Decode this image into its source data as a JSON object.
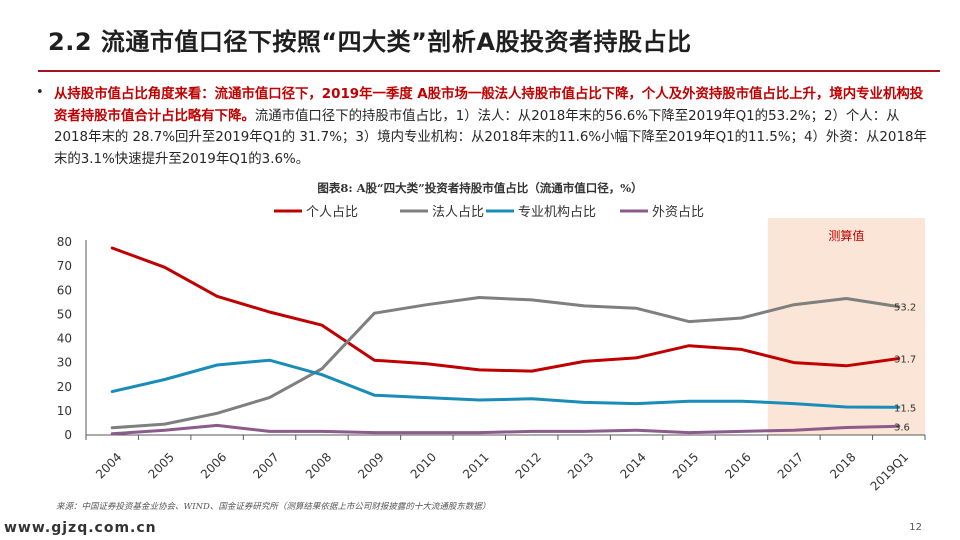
{
  "title": "2.2 流通市值口径下按照“四大类”剖析A股投资者持股占比",
  "paragraph": {
    "bullet": "•",
    "highlight": "从持股市值占比角度来看：流通市值口径下，2019年一季度 A股市场一般法人持股市值占比下降，个人及外资持股市值占比上升，境内专业机构投资者持股市值合计占比略有下降。",
    "body": "流通市值口径下的持股市值占比，1）法人：从2018年末的56.6%下降至2019年Q1的53.2%；2）个人：从 2018年末的 28.7%回升至2019年Q1的 31.7%；3）境内专业机构：从2018年末的11.6%小幅下降至2019年Q1的11.5%；4）外资：从2018年末的3.1%快速提升至2019年Q1的3.6%。"
  },
  "chart_title": "图表8: A股“四大类”投资者持股市值占比（流通市值口径，%）",
  "source": "来源：中国证券投资基金业协会、WIND、国金证券研究所（测算结果依据上市公司财报披露的十大流通股东数据）",
  "watermark": "www.gjzq.com.cn",
  "page_number": "12",
  "colors": {
    "accent": "#a0141d",
    "individual": "#c00000",
    "corporate": "#7f7f7f",
    "institution": "#1a8cb8",
    "foreign": "#8c5a8c",
    "estimate_bg": "#fbe5d6"
  },
  "chart_data": {
    "type": "line",
    "x": [
      "2004",
      "2005",
      "2006",
      "2007",
      "2008",
      "2009",
      "2010",
      "2011",
      "2012",
      "2013",
      "2014",
      "2015",
      "2016",
      "2017",
      "2018",
      "2019Q1"
    ],
    "series": [
      {
        "name": "个人占比",
        "color": "#c00000",
        "values": [
          77.5,
          69.5,
          57.5,
          51,
          45.5,
          31,
          29.5,
          27,
          26.5,
          30.5,
          32,
          37,
          35.5,
          30,
          28.7,
          31.7
        ]
      },
      {
        "name": "法人占比",
        "color": "#7f7f7f",
        "values": [
          3,
          4.5,
          9,
          15.5,
          27.5,
          50.5,
          54,
          57,
          56,
          53.5,
          52.5,
          47,
          48.5,
          54,
          56.6,
          53.2
        ]
      },
      {
        "name": "专业机构占比",
        "color": "#1a8cb8",
        "values": [
          18,
          23,
          29,
          31,
          25,
          16.5,
          15.5,
          14.5,
          15,
          13.5,
          13,
          14,
          14,
          13,
          11.6,
          11.5
        ]
      },
      {
        "name": "外资占比",
        "color": "#8c5a8c",
        "values": [
          0.5,
          2,
          4,
          1.5,
          1.5,
          1,
          1,
          1,
          1.5,
          1.5,
          2,
          1,
          1.5,
          2,
          3.1,
          3.6
        ]
      }
    ],
    "end_labels": [
      "31.7",
      "53.2",
      "11.5",
      "3.6"
    ],
    "yticks": [
      0,
      10,
      20,
      30,
      40,
      50,
      60,
      70,
      80
    ],
    "ylim": [
      0,
      80
    ],
    "estimate_label": "测算值",
    "estimate_start_index": 13,
    "legend_position": "top"
  }
}
